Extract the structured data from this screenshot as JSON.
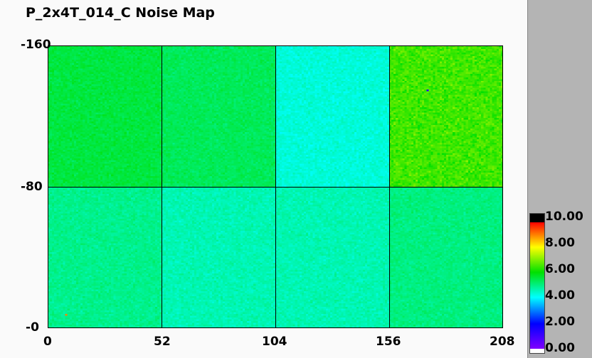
{
  "chart_data": {
    "type": "heatmap",
    "title": "P_2x4T_014_C Noise Map",
    "xlim": [
      0,
      208
    ],
    "ylim": [
      0,
      160
    ],
    "x_ticks": [
      "0",
      "52",
      "104",
      "156",
      "208"
    ],
    "y_ticks": [
      "0",
      "-80",
      "-160"
    ],
    "grid": true,
    "regions_approx_mean": {
      "top_row": [
        5.5,
        5.3,
        4.3,
        6.5
      ],
      "bottom_row": [
        4.9,
        4.6,
        4.6,
        5.0
      ]
    },
    "outlier_pixels": [
      {
        "x": 173,
        "y": 134,
        "value": 1.5
      },
      {
        "x": 8,
        "y": 7,
        "value": 9.0
      }
    ],
    "colorbar": {
      "range": [
        0,
        10
      ],
      "ticks": [
        "10.00",
        "8.00",
        "6.00",
        "4.00",
        "2.00",
        "0.00"
      ],
      "colors": [
        "#ffffff",
        "#8000ff",
        "#0000ff",
        "#00ffff",
        "#00e000",
        "#ffff00",
        "#ff0000",
        "#000000"
      ],
      "placement": "right"
    }
  }
}
